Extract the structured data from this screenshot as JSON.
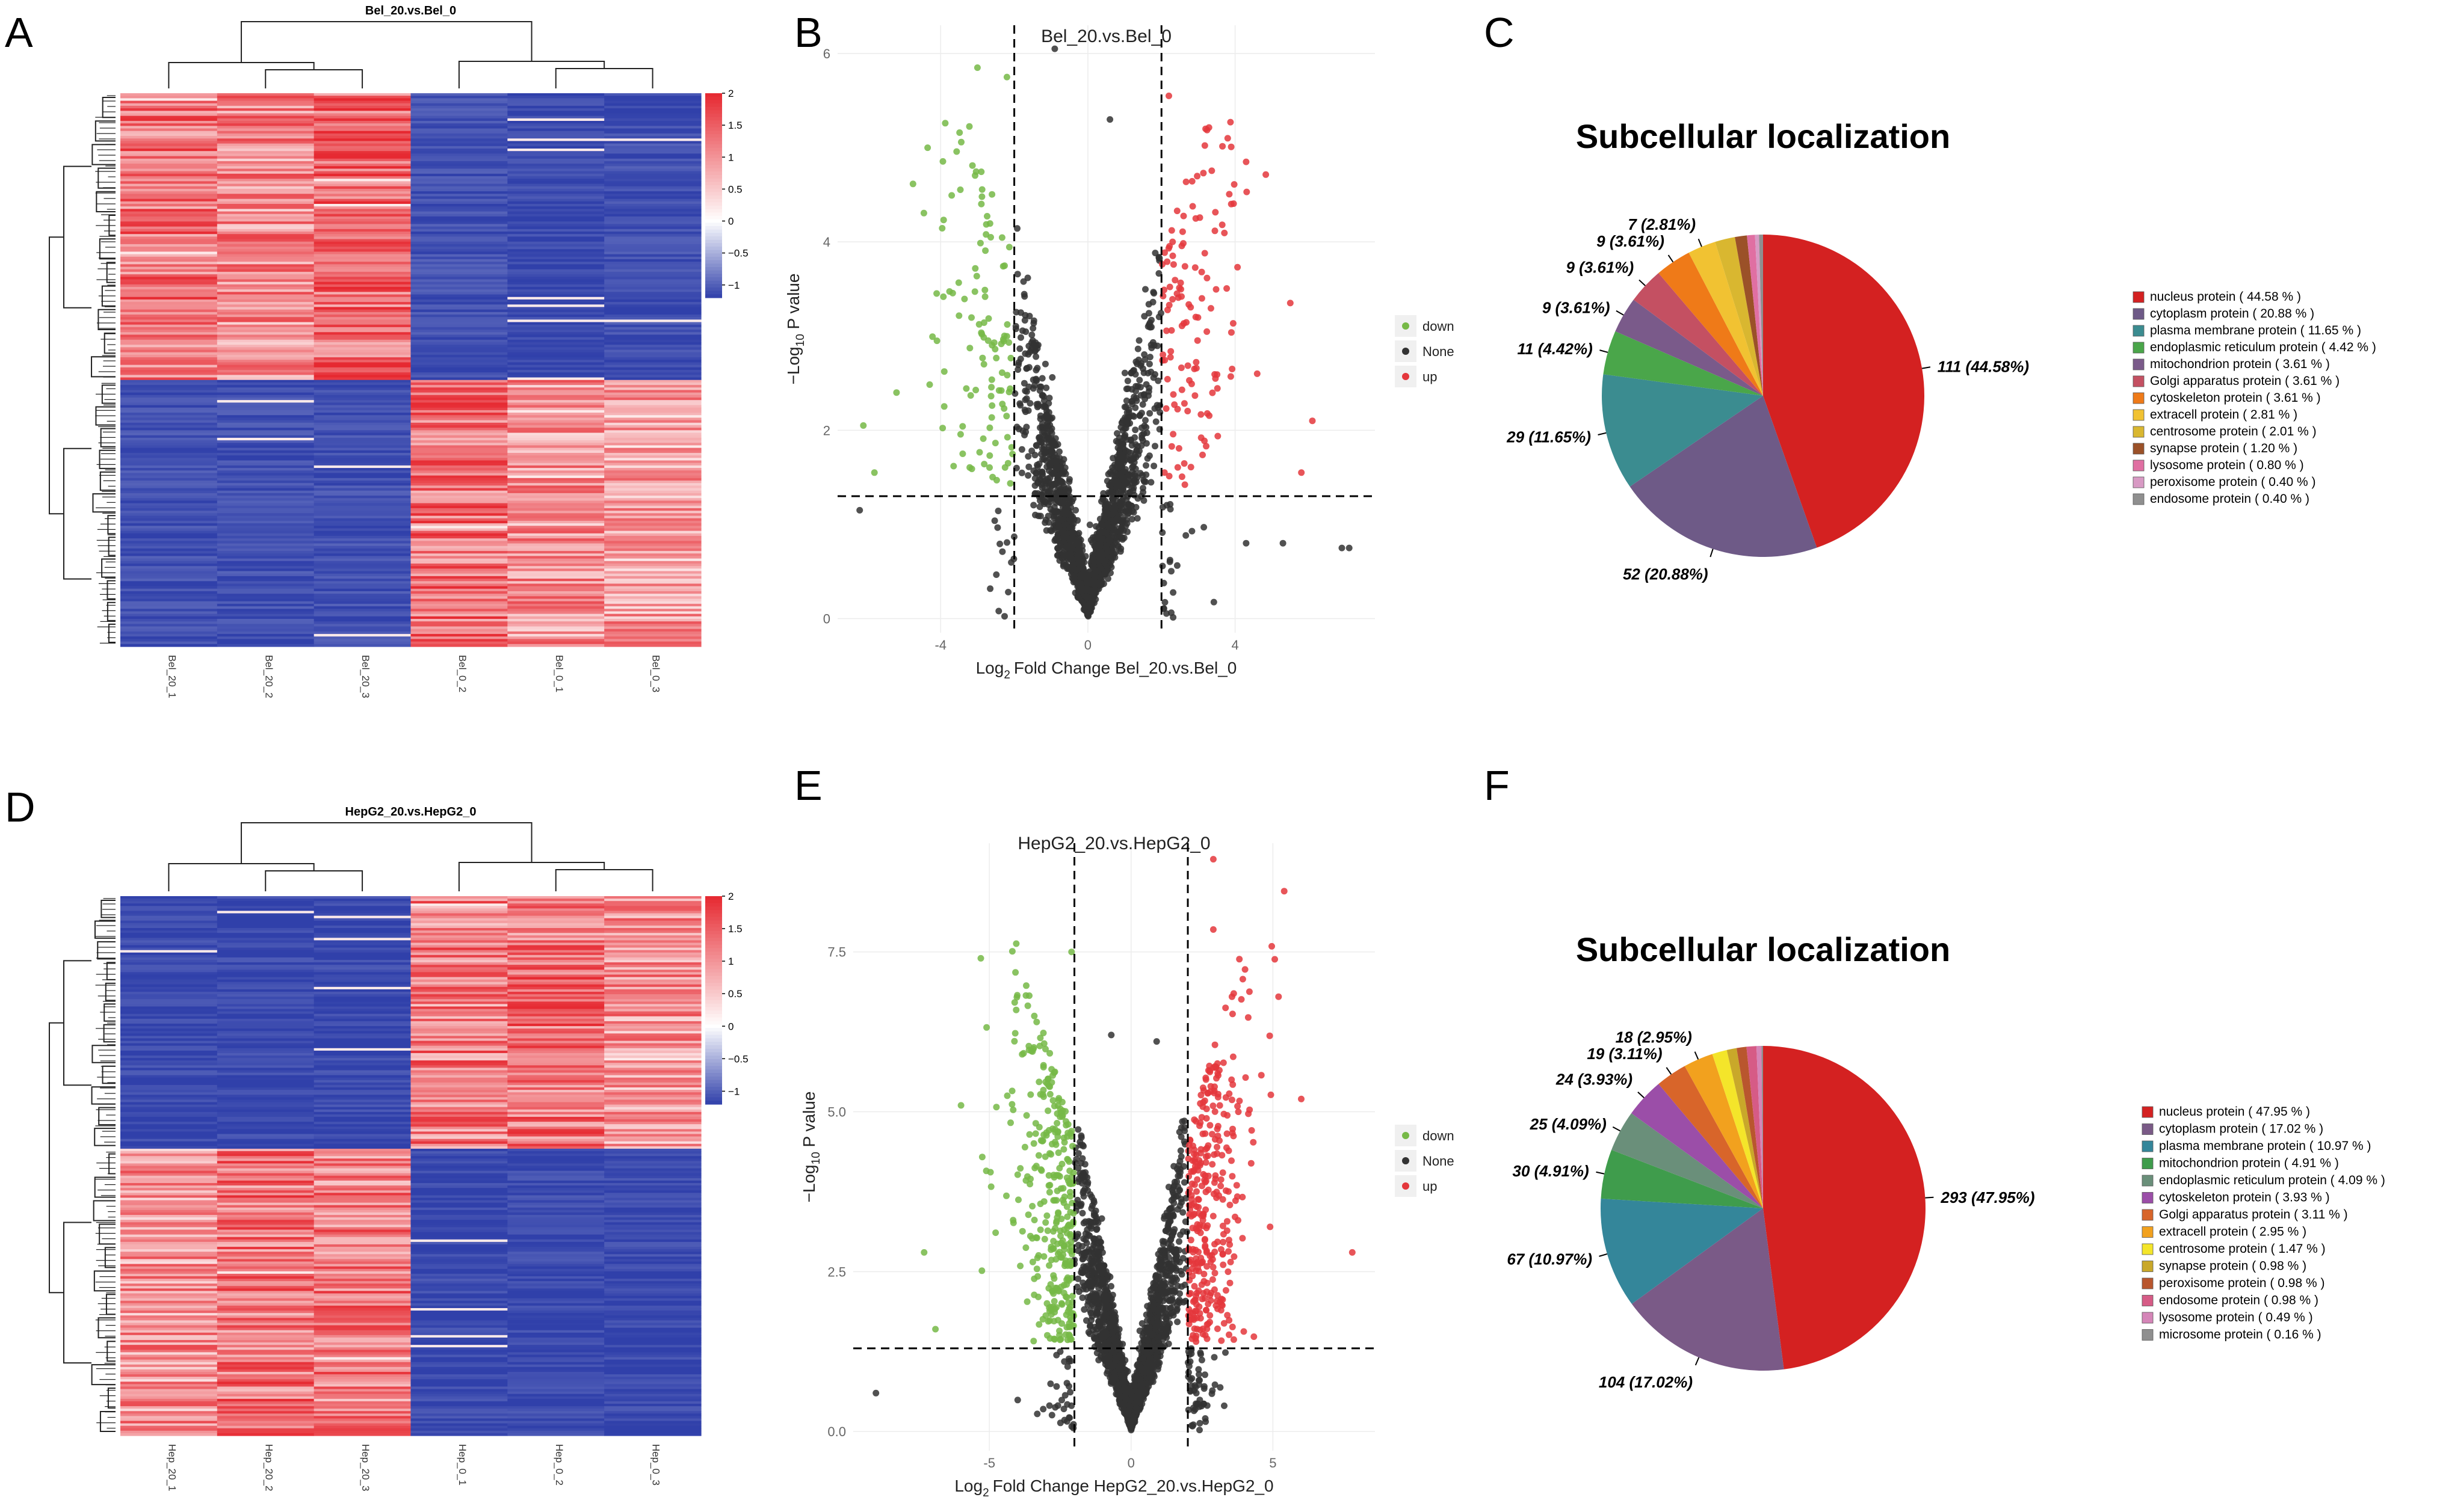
{
  "panel_letters": [
    "A",
    "B",
    "C",
    "D",
    "E",
    "F"
  ],
  "chart_data": [
    {
      "type": "heatmap",
      "panel": "A",
      "title": "Bel_20.vs.Bel_0",
      "columns": [
        "Bel_20_1",
        "Bel_20_2",
        "Bel_20_3",
        "Bel_0_2",
        "Bel_0_1",
        "Bel_0_3"
      ],
      "legend_ticks": [
        "2",
        "1.5",
        "1",
        "0.5",
        "0",
        "−0.5",
        "−1"
      ],
      "value_range": [
        -1.2,
        2
      ],
      "blocks": [
        {
          "rows_fraction": 0.52,
          "values": [
            1.3,
            1.1,
            1.4,
            -1.1,
            -1.15,
            -1.1
          ]
        },
        {
          "rows_fraction": 0.48,
          "values": [
            -1.1,
            -1.1,
            -1.1,
            1.3,
            1.0,
            0.9
          ]
        }
      ]
    },
    {
      "type": "scatter",
      "panel": "B",
      "title": "Bel_20.vs.Bel_0",
      "xlabel_sub": "2",
      "xlabel_main": "Fold Change Bel_20.vs.Bel_0",
      "xlabel_prefix": "Log",
      "ylabel_prefix": "−Log",
      "ylabel_sub": "10",
      "ylabel_main": " P value",
      "xlim": [
        -6.8,
        7.8
      ],
      "ylim": [
        -0.15,
        6.3
      ],
      "xticks": [
        -4,
        0,
        4
      ],
      "yticks": [
        0,
        2,
        4,
        6
      ],
      "fc_thresholds": [
        -2,
        2
      ],
      "p_threshold": 1.3,
      "legend": [
        "down",
        "None",
        "up"
      ],
      "series_colors": {
        "down": "#76b947",
        "None": "#333333",
        "up": "#e4373c"
      },
      "counts": {
        "none": 1900,
        "down": 110,
        "up": 120
      },
      "x_spread": 1.05,
      "y_scale": 1.35,
      "outliers": {
        "down": [
          [
            -6.1,
            2.05
          ],
          [
            -5.8,
            1.55
          ],
          [
            -4.1,
            2.95
          ],
          [
            -3.0,
            5.85
          ],
          [
            -2.2,
            5.75
          ],
          [
            -5.2,
            2.4
          ]
        ],
        "up": [
          [
            2.2,
            5.55
          ],
          [
            3.2,
            5.2
          ],
          [
            3.8,
            5.1
          ],
          [
            4.3,
            4.85
          ],
          [
            5.5,
            3.35
          ],
          [
            6.1,
            2.1
          ],
          [
            5.8,
            1.55
          ],
          [
            4.6,
            2.6
          ]
        ],
        "none": [
          [
            -0.9,
            6.05
          ],
          [
            0.6,
            5.3
          ],
          [
            -6.2,
            1.15
          ],
          [
            7.1,
            0.75
          ],
          [
            6.9,
            0.75
          ],
          [
            5.3,
            0.8
          ],
          [
            4.3,
            0.8
          ]
        ]
      }
    },
    {
      "type": "pie",
      "panel": "C",
      "title": "Subcellular localization",
      "slices": [
        {
          "label": "nucleus protein",
          "count": 111,
          "percent": 44.58,
          "legend": "nucleus protein  ( 44.58 % )",
          "callout": "111 (44.58%)",
          "color": "#d42121"
        },
        {
          "label": "cytoplasm protein",
          "count": 52,
          "percent": 20.88,
          "legend": "cytoplasm protein  ( 20.88 % )",
          "callout": "52 (20.88%)",
          "color": "#6e5a87"
        },
        {
          "label": "plasma membrane protein",
          "count": 29,
          "percent": 11.65,
          "legend": "plasma membrane protein  ( 11.65 % )",
          "callout": "29 (11.65%)",
          "color": "#3b8c90"
        },
        {
          "label": "endoplasmic reticulum protein",
          "count": 11,
          "percent": 4.42,
          "legend": "endoplasmic reticulum protein  ( 4.42 % )",
          "callout": "11 (4.42%)",
          "color": "#4aa64a"
        },
        {
          "label": "mitochondrion protein",
          "count": 9,
          "percent": 3.61,
          "legend": "mitochondrion protein  ( 3.61 % )",
          "callout": "9 (3.61%)",
          "color": "#7a5a8a"
        },
        {
          "label": "Golgi apparatus protein",
          "count": 9,
          "percent": 3.61,
          "legend": "Golgi apparatus protein  ( 3.61 % )",
          "callout": "9 (3.61%)",
          "color": "#c45062"
        },
        {
          "label": "cytoskeleton protein",
          "count": 9,
          "percent": 3.61,
          "legend": "cytoskeleton protein  ( 3.61 % )",
          "callout": "9 (3.61%)",
          "color": "#ef7a18"
        },
        {
          "label": "extracell protein",
          "count": 7,
          "percent": 2.81,
          "legend": "extracell protein  ( 2.81 % )",
          "callout": "7 (2.81%)",
          "color": "#f1c232"
        },
        {
          "label": "centrosome protein",
          "count": 5,
          "percent": 2.01,
          "legend": "centrosome protein  ( 2.01 % )",
          "callout": "",
          "color": "#d9b730"
        },
        {
          "label": "synapse protein",
          "count": 3,
          "percent": 1.2,
          "legend": "synapse protein  ( 1.20 % )",
          "callout": "",
          "color": "#9b5128"
        },
        {
          "label": "lysosome protein",
          "count": 2,
          "percent": 0.8,
          "legend": "lysosome protein  ( 0.80 % )",
          "callout": "",
          "color": "#e06fa2"
        },
        {
          "label": "peroxisome protein",
          "count": 1,
          "percent": 0.4,
          "legend": "peroxisome protein  ( 0.40 % )",
          "callout": "",
          "color": "#d89ac4"
        },
        {
          "label": "endosome protein",
          "count": 1,
          "percent": 0.4,
          "legend": "endosome protein  ( 0.40 % )",
          "callout": "",
          "color": "#8f8f8f"
        }
      ]
    },
    {
      "type": "heatmap",
      "panel": "D",
      "title": "HepG2_20.vs.HepG2_0",
      "columns": [
        "Hep_20_1",
        "Hep_20_2",
        "Hep_20_3",
        "Hep_0_1",
        "Hep_0_2",
        "Hep_0_3"
      ],
      "legend_ticks": [
        "2",
        "1.5",
        "1",
        "0.5",
        "0",
        "−0.5",
        "−1"
      ],
      "value_range": [
        -1.2,
        2
      ],
      "blocks": [
        {
          "rows_fraction": 0.47,
          "values": [
            -1.15,
            -1.15,
            -1.15,
            1.2,
            1.3,
            1.0
          ]
        },
        {
          "rows_fraction": 0.53,
          "values": [
            1.0,
            1.3,
            1.2,
            -1.15,
            -1.15,
            -1.15
          ]
        }
      ]
    },
    {
      "type": "scatter",
      "panel": "E",
      "title": "HepG2_20.vs.HepG2_0",
      "xlabel_prefix": "Log",
      "xlabel_sub": "2",
      "xlabel_main": "Fold Change HepG2_20.vs.HepG2_0",
      "ylabel_prefix": "−Log",
      "ylabel_sub": "10",
      "ylabel_main": " P value",
      "xlim": [
        -9.8,
        8.6
      ],
      "ylim": [
        -0.3,
        9.2
      ],
      "xticks": [
        -5,
        0,
        5
      ],
      "yticks": [
        0.0,
        2.5,
        5.0,
        7.5
      ],
      "ytick_labels": [
        "0.0",
        "2.5",
        "5.0",
        "7.5"
      ],
      "fc_thresholds": [
        -2,
        2
      ],
      "p_threshold": 1.3,
      "legend": [
        "down",
        "None",
        "up"
      ],
      "series_colors": {
        "down": "#76b947",
        "None": "#333333",
        "up": "#e4373c"
      },
      "counts": {
        "none": 2200,
        "down": 330,
        "up": 330
      },
      "x_spread": 1.15,
      "y_scale": 1.75,
      "outliers": {
        "down": [
          [
            -6.9,
            1.6
          ],
          [
            -7.3,
            2.8
          ],
          [
            -5.3,
            7.4
          ],
          [
            -2.1,
            7.5
          ],
          [
            -6.0,
            5.1
          ]
        ],
        "up": [
          [
            2.9,
            8.95
          ],
          [
            5.4,
            8.45
          ],
          [
            2.9,
            7.85
          ],
          [
            5.2,
            6.8
          ],
          [
            7.8,
            2.8
          ],
          [
            6.0,
            5.2
          ],
          [
            4.9,
            3.2
          ]
        ],
        "none": [
          [
            -9.0,
            0.6
          ],
          [
            -3.1,
            0.35
          ],
          [
            -0.7,
            6.2
          ],
          [
            0.9,
            6.1
          ],
          [
            2.3,
            0.6
          ]
        ]
      }
    },
    {
      "type": "pie",
      "panel": "F",
      "title": "Subcellular localization",
      "slices": [
        {
          "label": "nucleus protein",
          "count": 293,
          "percent": 47.95,
          "legend": "nucleus protein  ( 47.95 % )",
          "callout": "293 (47.95%)",
          "color": "#d42121"
        },
        {
          "label": "cytoplasm protein",
          "count": 104,
          "percent": 17.02,
          "legend": "cytoplasm protein  ( 17.02 % )",
          "callout": "104 (17.02%)",
          "color": "#7a5a87"
        },
        {
          "label": "plasma membrane protein",
          "count": 67,
          "percent": 10.97,
          "legend": "plasma membrane protein  ( 10.97 % )",
          "callout": "67 (10.97%)",
          "color": "#34869a"
        },
        {
          "label": "mitochondrion protein",
          "count": 30,
          "percent": 4.91,
          "legend": "mitochondrion protein  ( 4.91 % )",
          "callout": "30 (4.91%)",
          "color": "#3f9c4c"
        },
        {
          "label": "endoplasmic reticulum protein",
          "count": 25,
          "percent": 4.09,
          "legend": "endoplasmic reticulum protein  ( 4.09 % )",
          "callout": "25 (4.09%)",
          "color": "#6a8f7a"
        },
        {
          "label": "cytoskeleton protein",
          "count": 24,
          "percent": 3.93,
          "legend": "cytoskeleton protein  ( 3.93 % )",
          "callout": "24 (3.93%)",
          "color": "#9b4ea8"
        },
        {
          "label": "Golgi apparatus protein",
          "count": 19,
          "percent": 3.11,
          "legend": "Golgi apparatus protein  ( 3.11 % )",
          "callout": "19 (3.11%)",
          "color": "#d8652a"
        },
        {
          "label": "extracell protein",
          "count": 18,
          "percent": 2.95,
          "legend": "extracell protein  ( 2.95 % )",
          "callout": "18 (2.95%)",
          "color": "#f2a11e"
        },
        {
          "label": "centrosome protein",
          "count": 9,
          "percent": 1.47,
          "legend": "centrosome protein  ( 1.47 % )",
          "callout": "",
          "color": "#f4e52a"
        },
        {
          "label": "synapse protein",
          "count": 6,
          "percent": 0.98,
          "legend": "synapse protein  ( 0.98 % )",
          "callout": "",
          "color": "#c9a82a"
        },
        {
          "label": "peroxisome protein",
          "count": 6,
          "percent": 0.98,
          "legend": "peroxisome protein  ( 0.98 % )",
          "callout": "",
          "color": "#b9562e"
        },
        {
          "label": "endosome protein",
          "count": 6,
          "percent": 0.98,
          "legend": "endosome protein  ( 0.98 % )",
          "callout": "",
          "color": "#d65b86"
        },
        {
          "label": "lysosome protein",
          "count": 3,
          "percent": 0.49,
          "legend": "lysosome protein  ( 0.49 % )",
          "callout": "",
          "color": "#d585b8"
        },
        {
          "label": "microsome protein",
          "count": 1,
          "percent": 0.16,
          "legend": "microsome protein  ( 0.16 % )",
          "callout": "",
          "color": "#8f8f8f"
        }
      ]
    }
  ]
}
